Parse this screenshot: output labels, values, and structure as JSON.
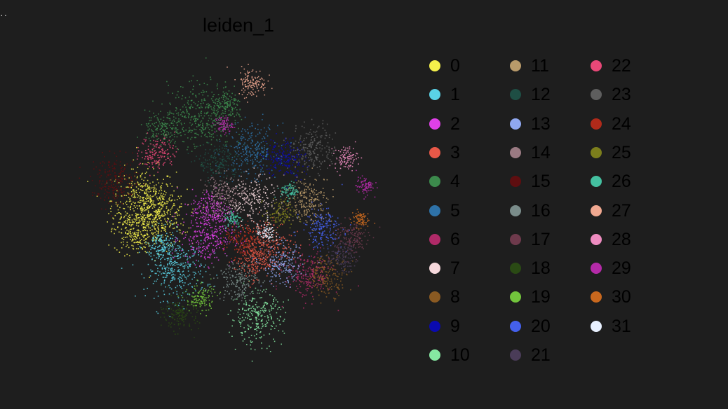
{
  "page": {
    "corner_text": "··"
  },
  "chart_data": {
    "type": "scatter",
    "title": "leiden_1",
    "xlabel": "",
    "ylabel": "",
    "grid": false,
    "legend_position": "right",
    "legend": {
      "columns": 3,
      "entries": [
        {
          "label": "0",
          "color": "#f4f04b"
        },
        {
          "label": "1",
          "color": "#5ad2e6"
        },
        {
          "label": "2",
          "color": "#e040e8"
        },
        {
          "label": "3",
          "color": "#e85848"
        },
        {
          "label": "4",
          "color": "#3c8a4c"
        },
        {
          "label": "5",
          "color": "#2e72a8"
        },
        {
          "label": "6",
          "color": "#b02a68"
        },
        {
          "label": "7",
          "color": "#f6d8dc"
        },
        {
          "label": "8",
          "color": "#8a5a22"
        },
        {
          "label": "9",
          "color": "#0a0ab0"
        },
        {
          "label": "10",
          "color": "#86e8a2"
        },
        {
          "label": "11",
          "color": "#b89a6a"
        },
        {
          "label": "12",
          "color": "#1e4e44"
        },
        {
          "label": "13",
          "color": "#90a8f0"
        },
        {
          "label": "14",
          "color": "#9a7a82"
        },
        {
          "label": "15",
          "color": "#5e0e10"
        },
        {
          "label": "16",
          "color": "#7a8c8a"
        },
        {
          "label": "17",
          "color": "#6e3a4c"
        },
        {
          "label": "18",
          "color": "#2a4a14"
        },
        {
          "label": "19",
          "color": "#72c43c"
        },
        {
          "label": "20",
          "color": "#4460ec"
        },
        {
          "label": "21",
          "color": "#4a3c58"
        },
        {
          "label": "22",
          "color": "#e84878"
        },
        {
          "label": "23",
          "color": "#5e5e5e"
        },
        {
          "label": "24",
          "color": "#b02a1a"
        },
        {
          "label": "25",
          "color": "#7c7e1c"
        },
        {
          "label": "26",
          "color": "#44c0a0"
        },
        {
          "label": "27",
          "color": "#f0a890"
        },
        {
          "label": "28",
          "color": "#ee8cc0"
        },
        {
          "label": "29",
          "color": "#b42aa8"
        },
        {
          "label": "30",
          "color": "#c8681e"
        },
        {
          "label": "31",
          "color": "#e8f0ff"
        }
      ]
    },
    "series": [
      {
        "cluster": "0",
        "points": [
          [
            -4.2,
            0.6,
            1.1
          ],
          [
            -3.6,
            -0.2,
            1.0
          ],
          [
            -4.6,
            -0.8,
            0.7
          ]
        ]
      },
      {
        "cluster": "1",
        "points": [
          [
            -2.8,
            -2.4,
            1.0
          ],
          [
            -3.4,
            -1.4,
            0.6
          ]
        ]
      },
      {
        "cluster": "2",
        "points": [
          [
            -1.5,
            -1.0,
            0.9
          ],
          [
            -1.3,
            0.2,
            0.7
          ]
        ]
      },
      {
        "cluster": "3",
        "points": [
          [
            1.0,
            -1.3,
            0.9
          ],
          [
            0.4,
            -2.0,
            0.6
          ]
        ]
      },
      {
        "cluster": "4",
        "points": [
          [
            -1.8,
            4.2,
            1.1
          ],
          [
            -3.4,
            3.6,
            0.6
          ],
          [
            -0.6,
            4.6,
            0.5
          ]
        ]
      },
      {
        "cluster": "5",
        "points": [
          [
            0.4,
            2.7,
            0.9
          ]
        ]
      },
      {
        "cluster": "6",
        "points": [
          [
            2.8,
            -2.6,
            0.8
          ]
        ]
      },
      {
        "cluster": "7",
        "points": [
          [
            0.4,
            0.6,
            0.8
          ]
        ]
      },
      {
        "cluster": "8",
        "points": [
          [
            3.6,
            -2.6,
            0.7
          ]
        ]
      },
      {
        "cluster": "9",
        "points": [
          [
            1.8,
            2.4,
            0.7
          ]
        ]
      },
      {
        "cluster": "10",
        "points": [
          [
            0.6,
            -4.4,
            0.9
          ]
        ]
      },
      {
        "cluster": "11",
        "points": [
          [
            2.8,
            0.6,
            0.8
          ]
        ]
      },
      {
        "cluster": "12",
        "points": [
          [
            -1.0,
            2.2,
            0.7
          ]
        ]
      },
      {
        "cluster": "13",
        "points": [
          [
            1.7,
            -2.2,
            0.7
          ]
        ]
      },
      {
        "cluster": "14",
        "points": [
          [
            -0.8,
            0.8,
            0.7
          ]
        ]
      },
      {
        "cluster": "15",
        "points": [
          [
            -5.4,
            1.4,
            0.8
          ]
        ]
      },
      {
        "cluster": "16",
        "points": [
          [
            -0.2,
            -2.8,
            0.7
          ]
        ]
      },
      {
        "cluster": "17",
        "points": [
          [
            4.6,
            -1.0,
            0.6
          ]
        ]
      },
      {
        "cluster": "18",
        "points": [
          [
            -2.6,
            -4.2,
            0.6
          ]
        ]
      },
      {
        "cluster": "19",
        "points": [
          [
            -1.8,
            -3.6,
            0.5
          ]
        ]
      },
      {
        "cluster": "20",
        "points": [
          [
            3.4,
            -0.6,
            0.7
          ]
        ]
      },
      {
        "cluster": "21",
        "points": [
          [
            4.2,
            -1.8,
            0.5
          ]
        ]
      },
      {
        "cluster": "22",
        "points": [
          [
            -3.6,
            2.6,
            0.6
          ]
        ]
      },
      {
        "cluster": "23",
        "points": [
          [
            3.0,
            2.8,
            0.8
          ]
        ]
      },
      {
        "cluster": "24",
        "points": [
          [
            0.0,
            -1.2,
            0.6
          ]
        ]
      },
      {
        "cluster": "25",
        "points": [
          [
            1.6,
            0.0,
            0.5
          ]
        ]
      },
      {
        "cluster": "26",
        "points": [
          [
            2.0,
            1.0,
            0.3
          ],
          [
            -0.4,
            -0.2,
            0.3
          ]
        ]
      },
      {
        "cluster": "27",
        "points": [
          [
            0.4,
            5.6,
            0.5
          ]
        ]
      },
      {
        "cluster": "28",
        "points": [
          [
            4.4,
            2.4,
            0.4
          ]
        ]
      },
      {
        "cluster": "29",
        "points": [
          [
            -0.8,
            3.8,
            0.3
          ],
          [
            5.2,
            1.2,
            0.3
          ]
        ]
      },
      {
        "cluster": "30",
        "points": [
          [
            5.0,
            -0.2,
            0.3
          ]
        ]
      },
      {
        "cluster": "31",
        "points": [
          [
            1.0,
            -0.8,
            0.3
          ]
        ]
      }
    ]
  }
}
